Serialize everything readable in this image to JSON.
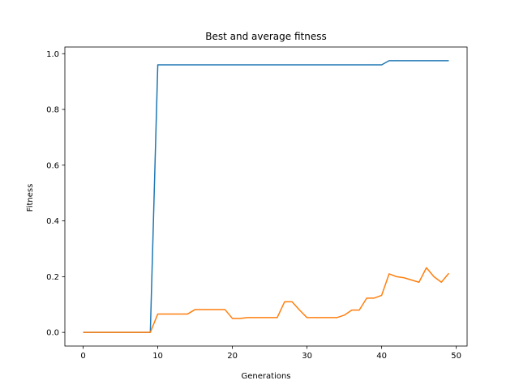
{
  "chart_data": {
    "type": "line",
    "title": "Best and average fitness",
    "xlabel": "Generations",
    "ylabel": "Fitness",
    "xlim": [
      -2.45,
      51.45
    ],
    "ylim": [
      -0.049,
      1.024
    ],
    "grid": false,
    "xticks": [
      0,
      10,
      20,
      30,
      40,
      50
    ],
    "yticks": [
      0.0,
      0.2,
      0.4,
      0.6,
      0.8,
      1.0
    ],
    "xtick_labels": [
      "0",
      "10",
      "20",
      "30",
      "40",
      "50"
    ],
    "ytick_labels": [
      "0.0",
      "0.2",
      "0.4",
      "0.6",
      "0.8",
      "1.0"
    ],
    "x": [
      0,
      1,
      2,
      3,
      4,
      5,
      6,
      7,
      8,
      9,
      10,
      11,
      12,
      13,
      14,
      15,
      16,
      17,
      18,
      19,
      20,
      21,
      22,
      23,
      24,
      25,
      26,
      27,
      28,
      29,
      30,
      31,
      32,
      33,
      34,
      35,
      36,
      37,
      38,
      39,
      40,
      41,
      42,
      43,
      44,
      45,
      46,
      47,
      48,
      49
    ],
    "series": [
      {
        "color": "#1f77b4",
        "values": [
          0,
          0,
          0,
          0,
          0,
          0,
          0,
          0,
          0,
          0,
          0.96,
          0.96,
          0.96,
          0.96,
          0.96,
          0.96,
          0.96,
          0.96,
          0.96,
          0.96,
          0.96,
          0.96,
          0.96,
          0.96,
          0.96,
          0.96,
          0.96,
          0.96,
          0.96,
          0.96,
          0.96,
          0.96,
          0.96,
          0.96,
          0.96,
          0.96,
          0.96,
          0.96,
          0.96,
          0.96,
          0.96,
          0.975,
          0.975,
          0.975,
          0.975,
          0.975,
          0.975,
          0.975,
          0.975,
          0.975
        ]
      },
      {
        "color": "#ff7f0e",
        "values": [
          0,
          0,
          0,
          0,
          0,
          0,
          0,
          0,
          0,
          0,
          0.066,
          0.066,
          0.066,
          0.066,
          0.066,
          0.082,
          0.082,
          0.082,
          0.082,
          0.082,
          0.05,
          0.05,
          0.053,
          0.053,
          0.053,
          0.053,
          0.053,
          0.11,
          0.11,
          0.08,
          0.053,
          0.053,
          0.053,
          0.053,
          0.053,
          0.062,
          0.08,
          0.08,
          0.123,
          0.123,
          0.133,
          0.21,
          0.2,
          0.196,
          0.188,
          0.18,
          0.232,
          0.2,
          0.18,
          0.212
        ]
      }
    ]
  }
}
